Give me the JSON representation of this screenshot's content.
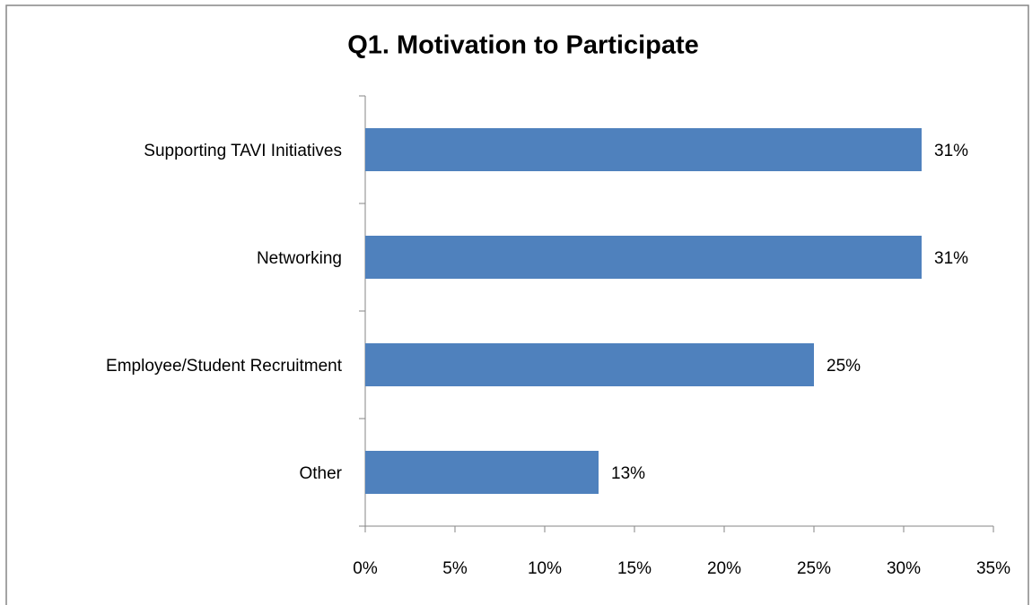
{
  "chart_data": {
    "type": "bar",
    "orientation": "horizontal",
    "title": "Q1. Motivation to Participate",
    "categories": [
      "Supporting TAVI Initiatives",
      "Networking",
      "Employee/Student Recruitment",
      "Other"
    ],
    "values": [
      31,
      31,
      25,
      13
    ],
    "value_labels": [
      "31%",
      "31%",
      "25%",
      "13%"
    ],
    "color": "#4f81bd",
    "xlim": [
      0,
      35
    ],
    "xticks": [
      {
        "value": 0,
        "label": "0%"
      },
      {
        "value": 5,
        "label": "5%"
      },
      {
        "value": 10,
        "label": "10%"
      },
      {
        "value": 15,
        "label": "15%"
      },
      {
        "value": 20,
        "label": "20%"
      },
      {
        "value": 25,
        "label": "25%"
      },
      {
        "value": 30,
        "label": "30%"
      },
      {
        "value": 35,
        "label": "35%"
      }
    ],
    "grid": false
  }
}
